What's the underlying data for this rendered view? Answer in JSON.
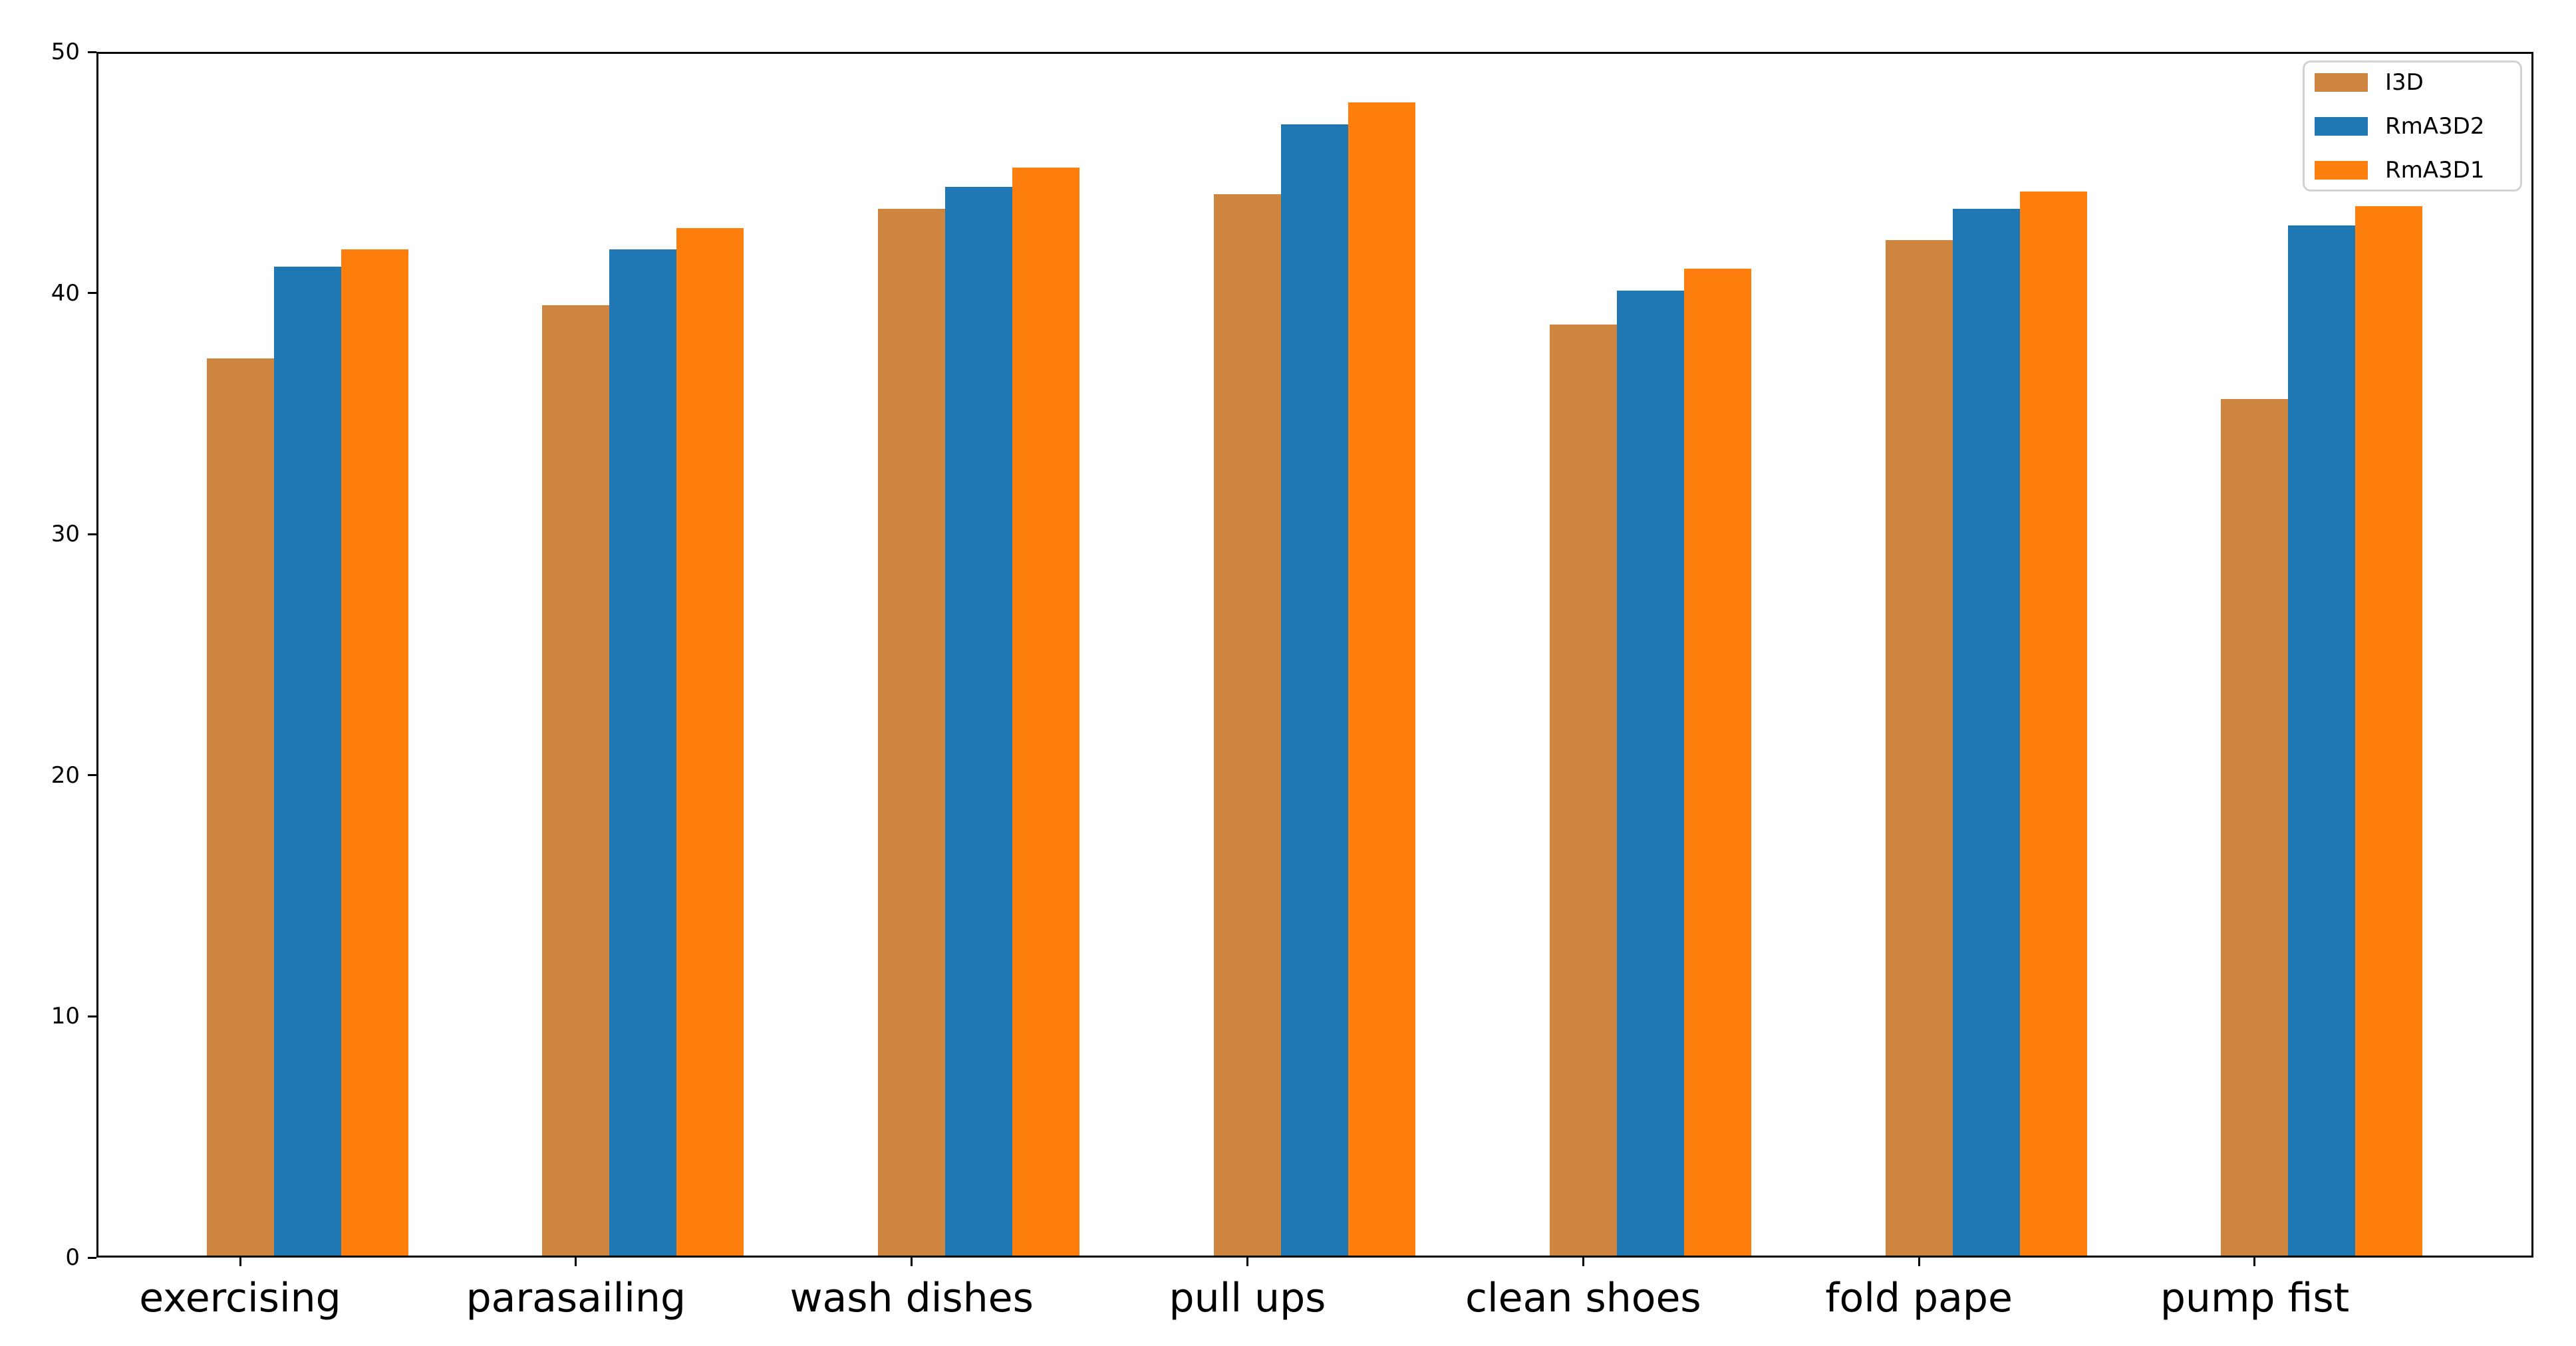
{
  "chart_data": {
    "type": "bar",
    "title": "",
    "xlabel": "",
    "ylabel": "",
    "categories": [
      "exercising",
      "parasailing",
      "wash dishes",
      "pull ups",
      "clean shoes",
      "fold pape",
      "pump fist"
    ],
    "series": [
      {
        "name": "I3D",
        "color": "#CD853F",
        "values": [
          37.3,
          39.5,
          43.5,
          44.1,
          38.7,
          42.2,
          35.6
        ]
      },
      {
        "name": "RmA3D2",
        "color": "#1F77B4",
        "values": [
          41.1,
          41.8,
          44.4,
          47.0,
          40.1,
          43.5,
          42.8
        ]
      },
      {
        "name": "RmA3D1",
        "color": "#FF7F0E",
        "values": [
          41.8,
          42.7,
          45.2,
          47.9,
          41.0,
          44.2,
          43.6
        ]
      }
    ],
    "ylim": [
      0,
      50
    ],
    "yticks": [
      0,
      10,
      20,
      30,
      40,
      50
    ],
    "grid": false,
    "legend_position": "upper right",
    "background_color": "#ffffff",
    "axis_color": "#000000"
  }
}
